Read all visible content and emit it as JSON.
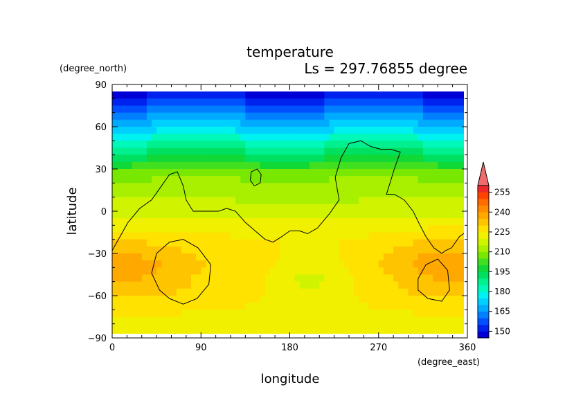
{
  "chart_data": {
    "type": "heatmap",
    "title": "temperature",
    "subtitle": "Ls = 297.76855 degree",
    "xlabel": "longitude",
    "ylabel": "latitude",
    "x_unit": "(degree_east)",
    "y_unit": "(degree_north)",
    "xlim": [
      0,
      360
    ],
    "ylim": [
      -90,
      90
    ],
    "x_ticks": [
      "0",
      "90",
      "180",
      "270",
      "360"
    ],
    "y_ticks": [
      "90",
      "60",
      "30",
      "0",
      "−30",
      "−60",
      "−90"
    ],
    "x_tick_values": [
      0,
      90,
      180,
      270,
      360
    ],
    "y_tick_values": [
      90,
      60,
      30,
      0,
      -30,
      -60,
      -90
    ],
    "colorbar": {
      "levels": [
        150,
        165,
        180,
        195,
        210,
        225,
        240,
        255
      ],
      "labels": [
        "150",
        "165",
        "180",
        "195",
        "210",
        "225",
        "240",
        "255"
      ],
      "boundaries": [
        145,
        150,
        155,
        160,
        165,
        170,
        175,
        180,
        185,
        190,
        195,
        200,
        205,
        210,
        215,
        220,
        225,
        230,
        235,
        240,
        245,
        250,
        255,
        260
      ],
      "colors": [
        "#0000d6",
        "#0022ee",
        "#0050ff",
        "#0080ff",
        "#00aaff",
        "#00d0ff",
        "#00f2f0",
        "#00f8b8",
        "#00f090",
        "#00e060",
        "#10d836",
        "#40e020",
        "#78e800",
        "#a8f000",
        "#d0f400",
        "#f0f000",
        "#ffe200",
        "#ffc400",
        "#ffa800",
        "#ff8c00",
        "#ff6c00",
        "#ff4400",
        "#f02828"
      ],
      "extend_color": "#f06b6b"
    },
    "lat_profile": {
      "lat": [
        85,
        80,
        75,
        70,
        65,
        60,
        55,
        50,
        45,
        40,
        35,
        30,
        25,
        20,
        15,
        10,
        5,
        0,
        -5,
        -10,
        -15,
        -20,
        -25,
        -30,
        -35,
        -40,
        -45,
        -50,
        -55,
        -60,
        -65,
        -70,
        -75,
        -80,
        -85
      ],
      "temperature": [
        148,
        153,
        158,
        163,
        168,
        172,
        177,
        183,
        188,
        193,
        198,
        204,
        208,
        212,
        213,
        214,
        216,
        218,
        220,
        222,
        224,
        226,
        227,
        228,
        229,
        229,
        228,
        228,
        228,
        227,
        226,
        225,
        224,
        223,
        222
      ]
    },
    "warm_regions": [
      {
        "lon": 35,
        "lat": -42,
        "temperature": 235
      },
      {
        "lon": 330,
        "lat": -38,
        "temperature": 237
      },
      {
        "lon": 200,
        "lat": -48,
        "temperature": 219
      }
    ],
    "contours": {
      "continent": [
        [
          0,
          -28
        ],
        [
          8,
          -18
        ],
        [
          16,
          -8
        ],
        [
          28,
          2
        ],
        [
          40,
          8
        ],
        [
          50,
          18
        ],
        [
          58,
          26
        ],
        [
          66,
          28
        ],
        [
          72,
          18
        ],
        [
          75,
          8
        ],
        [
          82,
          0
        ],
        [
          95,
          0
        ],
        [
          108,
          0
        ],
        [
          116,
          2
        ],
        [
          125,
          0
        ],
        [
          135,
          -8
        ],
        [
          145,
          -14
        ],
        [
          155,
          -20
        ],
        [
          163,
          -22
        ],
        [
          172,
          -18
        ],
        [
          180,
          -14
        ],
        [
          190,
          -14
        ],
        [
          198,
          -16
        ],
        [
          208,
          -12
        ],
        [
          220,
          -2
        ],
        [
          230,
          8
        ],
        [
          226,
          24
        ],
        [
          232,
          38
        ],
        [
          240,
          48
        ],
        [
          252,
          50
        ],
        [
          262,
          46
        ],
        [
          272,
          44
        ],
        [
          282,
          44
        ],
        [
          292,
          42
        ],
        [
          286,
          30
        ],
        [
          278,
          12
        ],
        [
          286,
          12
        ],
        [
          296,
          8
        ],
        [
          305,
          0
        ],
        [
          312,
          -10
        ],
        [
          318,
          -18
        ],
        [
          326,
          -26
        ],
        [
          334,
          -30
        ],
        [
          338,
          -28
        ],
        [
          344,
          -26
        ],
        [
          352,
          -18
        ],
        [
          360,
          -14
        ]
      ],
      "island": [
        [
          140,
          22
        ],
        [
          141,
          28
        ],
        [
          147,
          30
        ],
        [
          151,
          26
        ],
        [
          150,
          20
        ],
        [
          144,
          18
        ],
        [
          140,
          22
        ]
      ],
      "basin_west": [
        [
          58,
          -62
        ],
        [
          48,
          -56
        ],
        [
          40,
          -44
        ],
        [
          45,
          -30
        ],
        [
          58,
          -22
        ],
        [
          72,
          -20
        ],
        [
          87,
          -26
        ],
        [
          100,
          -38
        ],
        [
          98,
          -52
        ],
        [
          86,
          -62
        ],
        [
          72,
          -66
        ],
        [
          58,
          -62
        ]
      ],
      "basin_east": [
        [
          310,
          -48
        ],
        [
          318,
          -38
        ],
        [
          330,
          -34
        ],
        [
          340,
          -42
        ],
        [
          342,
          -56
        ],
        [
          334,
          -64
        ],
        [
          320,
          -62
        ],
        [
          310,
          -56
        ],
        [
          310,
          -48
        ]
      ]
    }
  }
}
